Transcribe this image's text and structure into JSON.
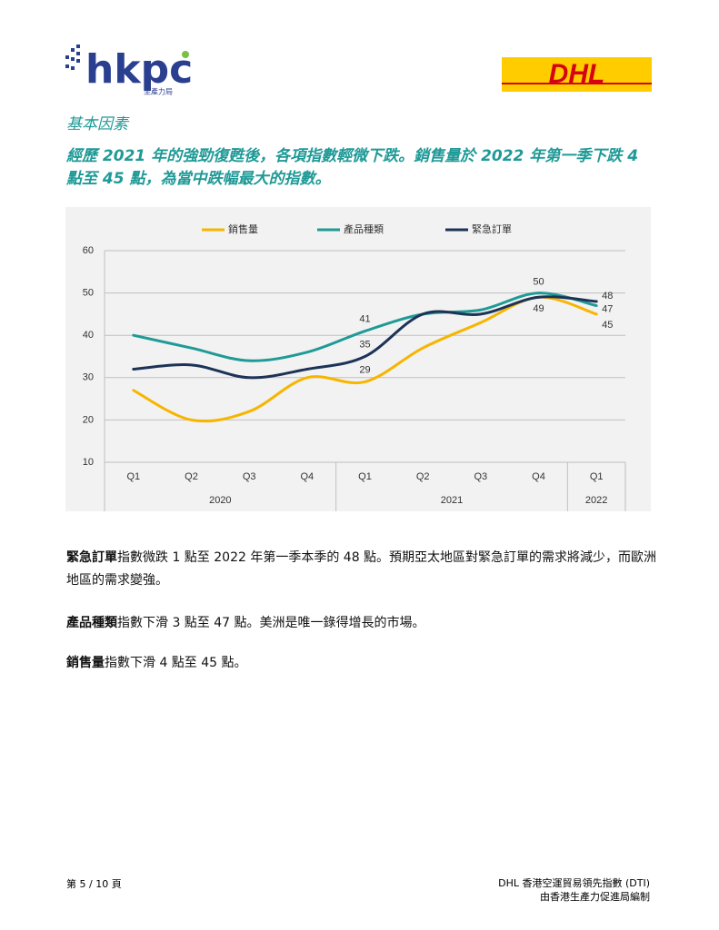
{
  "header": {
    "logo_left": "hkpc",
    "logo_left_sub": "生產力局",
    "logo_right": "DHL"
  },
  "section_title": "基本因素",
  "headline": "經歷 2021 年的強勁復甦後，各項指數輕微下跌。銷售量於 2022 年第一季下跌 4 點至 45 點，為當中跌幅最大的指數。",
  "chart_data": {
    "type": "line",
    "categories": [
      "Q1",
      "Q2",
      "Q3",
      "Q4",
      "Q1",
      "Q2",
      "Q3",
      "Q4",
      "Q1"
    ],
    "category_groups": [
      "2020",
      "2020",
      "2020",
      "2020",
      "2021",
      "2021",
      "2021",
      "2021",
      "2022"
    ],
    "series": [
      {
        "name": "銷售量",
        "color": "#f7b500",
        "values": [
          27,
          20,
          22,
          30,
          29,
          37,
          43,
          49,
          45
        ],
        "labeled": [
          4,
          7,
          8
        ]
      },
      {
        "name": "產品種類",
        "color": "#1f9a97",
        "values": [
          40,
          37,
          34,
          36,
          41,
          45,
          46,
          50,
          47
        ],
        "labeled": [
          4,
          7,
          8
        ]
      },
      {
        "name": "緊急訂單",
        "color": "#1c3357",
        "values": [
          32,
          33,
          30,
          32,
          35,
          45,
          45,
          49,
          48
        ],
        "labeled": [
          4,
          8
        ]
      }
    ],
    "ylim": [
      10,
      60
    ],
    "yticks": [
      10,
      20,
      30,
      40,
      50,
      60
    ],
    "grid": true,
    "legend": "top",
    "smooth": true
  },
  "paragraphs": [
    {
      "term": "緊急訂單",
      "text": "指數微跌 1 點至 2022 年第一季本季的 48 點。預期亞太地區對緊急訂單的需求將減少，而歐洲地區的需求變強。"
    },
    {
      "term": "產品種類",
      "text": "指數下滑 3 點至 47 點。美洲是唯一錄得增長的市場。"
    },
    {
      "term": "銷售量",
      "text": "指數下滑 4 點至 45 點。"
    }
  ],
  "footer": {
    "page": "第 5 / 10 頁",
    "right_1": "DHL 香港空運貿易領先指數 (DTI)",
    "right_2": "由香港生產力促進局編制"
  }
}
